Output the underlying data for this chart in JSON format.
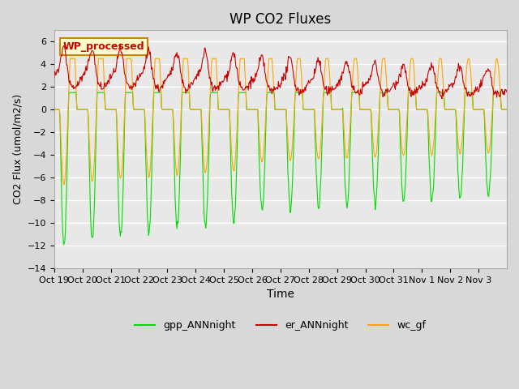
{
  "title": "WP CO2 Fluxes",
  "xlabel": "Time",
  "ylabel": "CO2 Flux (umol/m2/s)",
  "ylim": [
    -14,
    7
  ],
  "yticks": [
    -14,
    -12,
    -10,
    -8,
    -6,
    -4,
    -2,
    0,
    2,
    4,
    6
  ],
  "fig_bg_color": "#d8d8d8",
  "ax_bg_color": "#e8e8e8",
  "grid_color": "white",
  "colors": {
    "gpp": "#00dd00",
    "er": "#cc0000",
    "wc": "#ffa500"
  },
  "legend_labels": [
    "gpp_ANNnight",
    "er_ANNnight",
    "wc_gf"
  ],
  "annotation_text": "WP_processed",
  "annotation_bg": "#ffffcc",
  "annotation_border": "#cc8800",
  "annotation_text_color": "#cc0000",
  "n_days": 16,
  "tick_labels": [
    "Oct 19",
    "Oct 20",
    "Oct 21",
    "Oct 22",
    "Oct 23",
    "Oct 24",
    "Oct 25",
    "Oct 26",
    "Oct 27",
    "Oct 28",
    "Oct 29",
    "Oct 30",
    "Oct 31",
    "Nov 1",
    "Nov 2",
    "Nov 3"
  ]
}
